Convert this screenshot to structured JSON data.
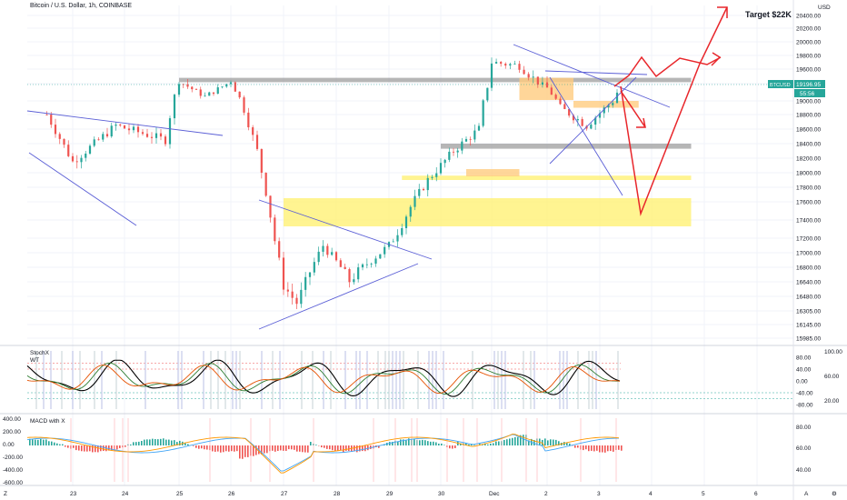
{
  "symbol_title": "Bitcoin / U.S. Dollar, 1h, COINBASE",
  "annotation_target": "Target $22K",
  "price_badge": {
    "symbol": "BTCUSD",
    "price": "19196.95",
    "countdown": "55:56",
    "color": "#26a69a"
  },
  "currency_label": "USD",
  "colors": {
    "up": "#26a69a",
    "down": "#ef5350",
    "trendline": "#5b5fd6",
    "forecast_arrow": "#e8262b",
    "zone_yellow": "#fff176",
    "zone_orange": "#ffcc80",
    "zone_gray": "#9e9e9e",
    "wt_fast": "#000000",
    "stoch_k": "#2e7d32",
    "stoch_d": "#e65100",
    "macd_line": "#42a5f5",
    "signal_line": "#ff9800"
  },
  "price_axis_ticks": [
    "20400.00",
    "20200.00",
    "20000.00",
    "19800.00",
    "19600.00",
    "19400.00",
    "19000.00",
    "18800.00",
    "18600.00",
    "18400.00",
    "18200.00",
    "18000.00",
    "17800.00",
    "17600.00",
    "17400.00",
    "17200.00",
    "17000.00",
    "16800.00",
    "16640.00",
    "16480.00",
    "16305.00",
    "16145.00",
    "15985.00"
  ],
  "date_axis_ticks": [
    "23",
    "24",
    "25",
    "26",
    "27",
    "28",
    "29",
    "30",
    "Dec",
    "2",
    "3",
    "4",
    "5",
    "6"
  ],
  "corner_labels": {
    "left": "Z",
    "right1": "A",
    "right2": "⚙"
  },
  "stoch_panel": {
    "label_1": "StochX",
    "label_2": "WT",
    "left_ticks": [],
    "right_ticks": [
      "80.00",
      "40.00",
      "0.00",
      "-40.00",
      "-80.00"
    ],
    "far_right_ticks": [
      "100.00",
      "60.00",
      "20.00"
    ]
  },
  "macd_panel": {
    "label": "MACD with X",
    "left_ticks": [
      "400.00",
      "200.00",
      "0.00",
      "-200.00",
      "-400.00",
      "-600.00"
    ],
    "right_ticks": [
      "80.00",
      "60.00",
      "40.00"
    ]
  },
  "chart_data": {
    "type": "candlestick",
    "title": "Bitcoin / U.S. Dollar, 1h, COINBASE",
    "ylim": [
      15985,
      20400
    ],
    "x_range": [
      "Nov 22",
      "Dec 7"
    ],
    "current_price": 19196.95,
    "close_path": [
      {
        "x": "Nov 22 12:00",
        "y": 18800
      },
      {
        "x": "Nov 23 00:00",
        "y": 18150
      },
      {
        "x": "Nov 23 20:00",
        "y": 18650
      },
      {
        "x": "Nov 24 18:00",
        "y": 18450
      },
      {
        "x": "Nov 25 00:00",
        "y": 19450
      },
      {
        "x": "Nov 25 12:00",
        "y": 19100
      },
      {
        "x": "Nov 26 00:00",
        "y": 19450
      },
      {
        "x": "Nov 26 12:00",
        "y": 18300
      },
      {
        "x": "Nov 27 00:00",
        "y": 16600
      },
      {
        "x": "Nov 27 06:00",
        "y": 16400
      },
      {
        "x": "Nov 27 18:00",
        "y": 17100
      },
      {
        "x": "Nov 28 06:00",
        "y": 16650
      },
      {
        "x": "Nov 28 18:00",
        "y": 16950
      },
      {
        "x": "Nov 29 00:00",
        "y": 17100
      },
      {
        "x": "Nov 29 18:00",
        "y": 17900
      },
      {
        "x": "Nov 30 06:00",
        "y": 18300
      },
      {
        "x": "Nov 30 18:00",
        "y": 18600
      },
      {
        "x": "Dec 1 00:00",
        "y": 19700
      },
      {
        "x": "Dec 1 12:00",
        "y": 19650
      },
      {
        "x": "Dec 2 00:00",
        "y": 19300
      },
      {
        "x": "Dec 2 06:00",
        "y": 18900
      },
      {
        "x": "Dec 2 18:00",
        "y": 18650
      },
      {
        "x": "Dec 3 06:00",
        "y": 19000
      },
      {
        "x": "Dec 3 08:00",
        "y": 19197
      }
    ],
    "zones": [
      {
        "color": "gray",
        "y_low": 19420,
        "y_high": 19480,
        "x_from": "Nov 25 00:00",
        "x_to": "Dec 4 18:00"
      },
      {
        "color": "gray",
        "y_low": 18330,
        "y_high": 18400,
        "x_from": "Nov 30 00:00",
        "x_to": "Dec 4 18:00"
      },
      {
        "color": "yellow",
        "y_low": 17900,
        "y_high": 17960,
        "x_from": "Nov 29 06:00",
        "x_to": "Dec 4 18:00"
      },
      {
        "color": "yellow",
        "y_low": 17330,
        "y_high": 17650,
        "x_from": "Nov 27 00:00",
        "x_to": "Dec 4 18:00"
      },
      {
        "color": "orange",
        "y_low": 19020,
        "y_high": 19480,
        "x_from": "Dec 1 12:00",
        "x_to": "Dec 2 12:00"
      },
      {
        "color": "orange",
        "y_low": 18900,
        "y_high": 19000,
        "x_from": "Dec 2 12:00",
        "x_to": "Dec 3 18:00"
      },
      {
        "color": "orange",
        "y_low": 17950,
        "y_high": 18050,
        "x_from": "Nov 30 12:00",
        "x_to": "Dec 1 12:00"
      }
    ]
  }
}
